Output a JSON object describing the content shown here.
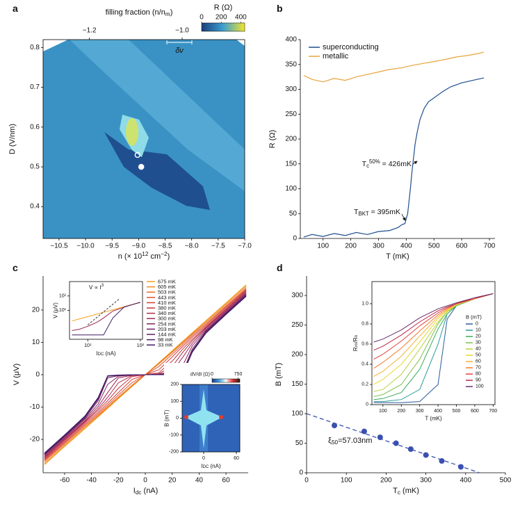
{
  "chart_data": [
    {
      "type": "heatmap",
      "panel_label": "a",
      "xlabel": [
        "n (× 10",
        {
          "sup": "12"
        },
        " cm",
        {
          "sup": "−2"
        },
        ")"
      ],
      "ylabel": "D (V/nm)",
      "x2label": [
        "filling fraction (n/n",
        {
          "sub": "m"
        },
        ")"
      ],
      "xlim": [
        -10.8,
        -7.0
      ],
      "xticks": [
        {
          "value": -10.5,
          "label": "−10.5"
        },
        {
          "value": -10,
          "label": "−10.0"
        },
        {
          "value": -9.5,
          "label": "−9.5"
        },
        {
          "value": -9,
          "label": "−9.0"
        },
        {
          "value": -8.5,
          "label": "−8.5"
        },
        {
          "value": -8,
          "label": "−8.0"
        },
        {
          "value": -7.5,
          "label": "−7.5"
        },
        {
          "value": -7,
          "label": "−7.0"
        }
      ],
      "x2lim": [
        -1.3,
        -0.865
      ],
      "x2ticks": [
        {
          "value": -1.2,
          "label": "−1.2"
        },
        {
          "value": -1,
          "label": "−1.0"
        }
      ],
      "ylim": [
        0.32,
        0.82
      ],
      "yticks": [
        0.4,
        0.5,
        0.6,
        0.7,
        0.8
      ],
      "colorbar": {
        "label": "R (Ω)",
        "lim": [
          0,
          440
        ],
        "ticks": [
          0,
          200,
          400
        ],
        "colors": [
          "#1a3f7a",
          "#3d9fd0",
          "#f2e52a"
        ]
      },
      "annotation": "δν",
      "markers": [
        {
          "x": -9.02,
          "y": 0.53,
          "style": "open"
        },
        {
          "x": -8.95,
          "y": 0.5,
          "style": "filled"
        }
      ]
    },
    {
      "type": "line",
      "panel_label": "b",
      "xlabel": "T (mK)",
      "ylabel": "R (Ω)",
      "xlim": [
        18,
        720
      ],
      "xticks": [
        100,
        200,
        300,
        400,
        500,
        600,
        700
      ],
      "ylim": [
        0,
        400
      ],
      "yticks": [
        0,
        50,
        100,
        150,
        200,
        250,
        300,
        350,
        400
      ],
      "legend": "upper left",
      "series": [
        {
          "name": "superconducting",
          "color": "#1f4e8c",
          "x": [
            30,
            60,
            100,
            140,
            180,
            220,
            260,
            300,
            340,
            370,
            385,
            395,
            405,
            415,
            420,
            426,
            432,
            440,
            450,
            465,
            480,
            500,
            530,
            560,
            600,
            640,
            680
          ],
          "values": [
            3,
            8,
            4,
            10,
            6,
            12,
            8,
            14,
            16,
            22,
            28,
            30,
            50,
            100,
            130,
            160,
            190,
            215,
            240,
            262,
            275,
            283,
            295,
            305,
            313,
            318,
            323
          ]
        },
        {
          "name": "metallic",
          "color": "#e8a33d",
          "x": [
            30,
            60,
            100,
            140,
            180,
            220,
            260,
            300,
            340,
            380,
            420,
            460,
            500,
            540,
            580,
            620,
            660,
            680
          ],
          "values": [
            328,
            320,
            315,
            322,
            318,
            325,
            330,
            335,
            340,
            343,
            348,
            352,
            356,
            360,
            365,
            368,
            372,
            375
          ]
        }
      ],
      "annotations": [
        [
          "T",
          {
            "sub": "c"
          },
          {
            "sup": "50%"
          },
          " = 426mK"
        ],
        [
          "T",
          {
            "sub": "BKT"
          },
          " = 395mK"
        ]
      ]
    },
    {
      "type": "line",
      "panel_label": "c",
      "xlabel": [
        "I",
        {
          "sub": "dc"
        },
        " (nA)"
      ],
      "ylabel": "V (μV)",
      "xlim": [
        -76,
        76.5
      ],
      "xticks": [
        -60,
        -40,
        -20,
        0,
        20,
        40,
        60
      ],
      "ylim": [
        -30.3,
        30.5
      ],
      "yticks": [
        -20,
        -10,
        0,
        10,
        20
      ],
      "legend": "upper center",
      "x": [
        -75,
        -60,
        -45,
        -35,
        -28,
        -20,
        -10,
        0,
        10,
        20,
        28,
        35,
        45,
        60,
        75
      ],
      "series": [
        {
          "name": "675 mK",
          "color": "#f6a01a",
          "values": [
            -27.8,
            -22.2,
            -16.7,
            -13,
            -10.4,
            -7.4,
            -3.7,
            0,
            3.7,
            7.4,
            10.4,
            13,
            16.7,
            22.2,
            27.8
          ]
        },
        {
          "name": "605 mK",
          "color": "#f08a1c",
          "values": [
            -27.5,
            -21.9,
            -16.4,
            -12.8,
            -10.2,
            -7.2,
            -3.6,
            0,
            3.6,
            7.2,
            10.2,
            12.8,
            16.4,
            21.9,
            27.5
          ]
        },
        {
          "name": "503 mK",
          "color": "#ea6a22",
          "values": [
            -27,
            -21.5,
            -16,
            -12.5,
            -9.9,
            -6.9,
            -3.3,
            0,
            3.3,
            6.9,
            9.9,
            12.5,
            16,
            21.5,
            27
          ]
        },
        {
          "name": "443 mK",
          "color": "#e0502a",
          "values": [
            -26.6,
            -21.1,
            -15.6,
            -12.1,
            -9.4,
            -6.3,
            -2.5,
            0,
            2.5,
            6.3,
            9.4,
            12.1,
            15.6,
            21.1,
            26.6
          ]
        },
        {
          "name": "410 mK",
          "color": "#d43c34",
          "values": [
            -26.3,
            -20.8,
            -15.2,
            -11.6,
            -8.8,
            -5.5,
            -1.5,
            0,
            1.5,
            5.5,
            8.8,
            11.6,
            15.2,
            20.8,
            26.3
          ]
        },
        {
          "name": "380 mK",
          "color": "#c3303e",
          "values": [
            -26,
            -20.4,
            -14.8,
            -11,
            -8,
            -4.2,
            -0.6,
            0,
            0.6,
            4.2,
            8,
            11,
            14.8,
            20.4,
            26
          ]
        },
        {
          "name": "340 mK",
          "color": "#b02a48",
          "values": [
            -25.7,
            -20.1,
            -14.5,
            -10.5,
            -7,
            -2.5,
            -0.3,
            0,
            0.3,
            2.5,
            7,
            10.5,
            14.5,
            20.1,
            25.7
          ]
        },
        {
          "name": "300 mK",
          "color": "#9c2552",
          "values": [
            -25.4,
            -19.8,
            -14.2,
            -9.8,
            -5.5,
            -1,
            -0.2,
            0,
            0.2,
            1,
            5.5,
            9.8,
            14.2,
            19.8,
            25.4
          ]
        },
        {
          "name": "254 mK",
          "color": "#86225a",
          "values": [
            -25.1,
            -19.5,
            -13.8,
            -9,
            -3,
            -0.5,
            -0.1,
            0,
            0.1,
            0.5,
            3,
            9,
            13.8,
            19.5,
            25.1
          ]
        },
        {
          "name": "203 mK",
          "color": "#712062",
          "values": [
            -24.8,
            -19.2,
            -13.5,
            -8,
            -1,
            -0.3,
            -0.1,
            0,
            0.1,
            0.3,
            1,
            8,
            13.5,
            19.2,
            24.8
          ]
        },
        {
          "name": "144 mK",
          "color": "#5e1e66",
          "values": [
            -24.6,
            -19,
            -13.2,
            -7.5,
            -0.5,
            -0.2,
            0,
            0,
            0,
            0.2,
            0.5,
            7.5,
            13.2,
            19,
            24.6
          ]
        },
        {
          "name": "98 mK",
          "color": "#4d1d68",
          "values": [
            -24.4,
            -18.8,
            -13,
            -7.2,
            -0.4,
            -0.2,
            0,
            0,
            0,
            0.2,
            0.4,
            7.2,
            13,
            18.8,
            24.4
          ]
        },
        {
          "name": "33 mK",
          "color": "#3c1c66",
          "values": [
            -24.2,
            -18.6,
            -12.8,
            -7,
            -0.3,
            -0.1,
            0,
            0,
            0,
            0.1,
            0.3,
            7,
            12.8,
            18.6,
            24.2
          ]
        }
      ],
      "insets": [
        {
          "type": "line",
          "xscale": "log",
          "yscale": "log",
          "xlim": [
            4.5,
            110
          ],
          "xticks": [
            {
              "value": 10,
              "label": "10¹"
            },
            {
              "value": 100,
              "label": "10²"
            }
          ],
          "ylim": [
            0.1,
            1000
          ],
          "yticks": [
            {
              "value": 10,
              "label": "10¹"
            },
            {
              "value": 100,
              "label": "10²"
            }
          ],
          "xlabel": [
            "I",
            {
              "sub": "DC"
            },
            " (nA)"
          ],
          "ylabel": "V (μV)",
          "x": [
            5,
            7,
            10,
            15,
            20,
            30,
            50,
            70,
            100
          ],
          "series": [
            {
              "color": "#f6a01a",
              "values": [
                1.85,
                2.6,
                3.7,
                5.5,
                7.4,
                11,
                18.5,
                26,
                37
              ]
            },
            {
              "color": "#9c2552",
              "values": [
                0.4,
                0.5,
                0.8,
                1.5,
                3,
                9,
                17,
                25,
                36
              ]
            },
            {
              "color": "#3c1c66",
              "values": [
                0.2,
                0.2,
                0.2,
                0.2,
                0.2,
                3,
                18,
                25,
                37
              ]
            }
          ],
          "fit": {
            "x": [
              10,
              40
            ],
            "values": [
              1,
              64
            ]
          },
          "annotation": [
            "V ∝ I",
            {
              "sup": "3"
            }
          ]
        },
        {
          "type": "heatmap",
          "xlim": [
            -39.6,
            66.4
          ],
          "xticks": [
            0,
            60
          ],
          "ylim": [
            -200,
            200
          ],
          "yticks": [
            -200,
            -100,
            0,
            100,
            200
          ],
          "xlabel": [
            "I",
            {
              "sub": "DC"
            },
            " (nA)"
          ],
          "ylabel": "B (mT)",
          "colorbar": {
            "label": "dV/dI (Ω)",
            "lim": [
              0,
              800
            ],
            "ticks": [
              0,
              750
            ],
            "colors": [
              "#1d3a8a",
              "#3fa0e0",
              "#ffffff",
              "#e83030",
              "#202020"
            ]
          }
        }
      ]
    },
    {
      "type": "scatter",
      "panel_label": "d",
      "xlabel": [
        "T",
        {
          "sub": "c"
        },
        " (mK)"
      ],
      "ylabel": "B (mT)",
      "xlim": [
        0,
        500
      ],
      "xticks": [
        0,
        100,
        200,
        300,
        400,
        500
      ],
      "ylim": [
        0,
        333
      ],
      "yticks": [
        0,
        50,
        100,
        150,
        200,
        250,
        300
      ],
      "x": [
        70,
        145,
        185,
        225,
        262,
        300,
        340,
        388
      ],
      "values": [
        80,
        70,
        60,
        50,
        40,
        30,
        20,
        10
      ],
      "color": "#3a50b0",
      "fit": {
        "x": [
          0,
          435
        ],
        "values": [
          100,
          0
        ]
      },
      "annotation": [
        "ξ",
        {
          "sub": "50"
        },
        "=57.03nm"
      ],
      "insets": [
        {
          "type": "line",
          "xlim": [
            40,
            710
          ],
          "xticks": [
            100,
            200,
            300,
            400,
            500,
            600,
            700
          ],
          "ylim": [
            0,
            1.22
          ],
          "yticks": [
            0,
            0.2,
            0.4,
            0.6,
            0.8,
            {
              "value": 1,
              "label": "1.0"
            }
          ],
          "xlabel": "T (mK)",
          "ylabel": [
            "R",
            {
              "sub": "xx"
            },
            "/R",
            {
              "sub": "n"
            }
          ],
          "legend_title": "B (mT)",
          "legend": "right",
          "x": [
            50,
            100,
            200,
            300,
            400,
            450,
            500,
            600,
            700
          ],
          "series": [
            {
              "name": "0",
              "color": "#2a5a9b",
              "values": [
                0.02,
                0.02,
                0.02,
                0.03,
                0.2,
                0.85,
                0.98,
                1.05,
                1.1
              ]
            },
            {
              "name": "10",
              "color": "#2a9a9a",
              "values": [
                0.03,
                0.03,
                0.05,
                0.15,
                0.6,
                0.9,
                0.98,
                1.05,
                1.1
              ]
            },
            {
              "name": "20",
              "color": "#3aaa5a",
              "values": [
                0.05,
                0.06,
                0.12,
                0.35,
                0.75,
                0.9,
                0.98,
                1.05,
                1.1
              ]
            },
            {
              "name": "30",
              "color": "#7cc24a",
              "values": [
                0.08,
                0.1,
                0.2,
                0.45,
                0.8,
                0.92,
                0.98,
                1.05,
                1.1
              ]
            },
            {
              "name": "40",
              "color": "#b8d23a",
              "values": [
                0.13,
                0.15,
                0.3,
                0.55,
                0.82,
                0.92,
                0.99,
                1.05,
                1.1
              ]
            },
            {
              "name": "50",
              "color": "#e8d830",
              "values": [
                0.2,
                0.25,
                0.4,
                0.62,
                0.85,
                0.93,
                0.99,
                1.05,
                1.1
              ]
            },
            {
              "name": "60",
              "color": "#f4b030",
              "values": [
                0.28,
                0.33,
                0.48,
                0.68,
                0.87,
                0.94,
                0.99,
                1.05,
                1.1
              ]
            },
            {
              "name": "70",
              "color": "#f07a2a",
              "values": [
                0.36,
                0.42,
                0.56,
                0.73,
                0.89,
                0.95,
                1,
                1.05,
                1.1
              ]
            },
            {
              "name": "80",
              "color": "#e0403a",
              "values": [
                0.45,
                0.5,
                0.63,
                0.78,
                0.91,
                0.96,
                1,
                1.05,
                1.1
              ]
            },
            {
              "name": "90",
              "color": "#b82848",
              "values": [
                0.54,
                0.58,
                0.69,
                0.82,
                0.93,
                0.97,
                1,
                1.06,
                1.1
              ]
            },
            {
              "name": "100",
              "color": "#6a2a6a",
              "values": [
                0.62,
                0.65,
                0.74,
                0.86,
                0.95,
                0.98,
                1.01,
                1.06,
                1.1
              ]
            }
          ]
        }
      ]
    }
  ]
}
